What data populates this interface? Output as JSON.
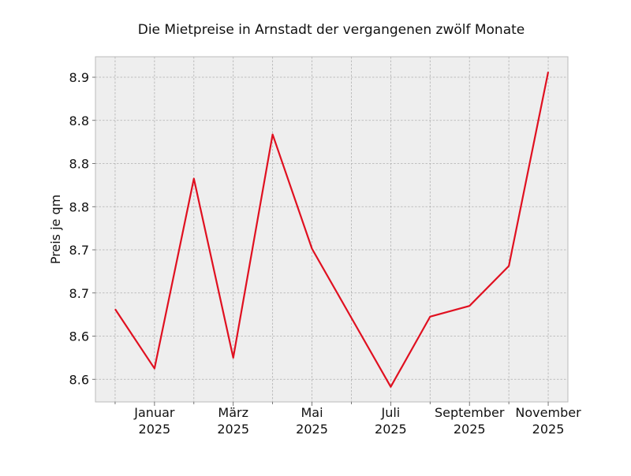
{
  "chart_data": {
    "type": "line",
    "title": "Die Mietpreise in Arnstadt der vergangenen zwölf Monate",
    "y_label": "Preis je qm",
    "categories": [
      null,
      "Januar\n2025",
      null,
      "März\n2025",
      null,
      "Mai\n2025",
      null,
      "Juli\n2025",
      null,
      "September\n2025",
      null,
      "November\n2025"
    ],
    "series": [
      {
        "name": "Preis je qm",
        "color": "#e01020",
        "values": [
          8.665,
          8.61,
          8.786,
          8.62,
          8.827,
          8.721,
          8.657,
          8.593,
          8.658,
          8.668,
          8.705,
          8.885
        ]
      }
    ],
    "ylim": [
      8.579,
      8.899
    ],
    "yticks": [
      {
        "value": 8.6,
        "label": "8.6"
      },
      {
        "value": 8.64,
        "label": "8.6"
      },
      {
        "value": 8.68,
        "label": "8.7"
      },
      {
        "value": 8.72,
        "label": "8.7"
      },
      {
        "value": 8.76,
        "label": "8.8"
      },
      {
        "value": 8.8,
        "label": "8.8"
      },
      {
        "value": 8.84,
        "label": "8.8"
      },
      {
        "value": 8.88,
        "label": "8.9"
      }
    ],
    "grid": true
  }
}
